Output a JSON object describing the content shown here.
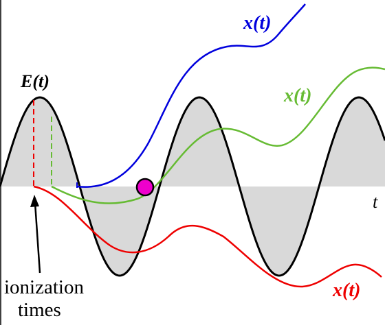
{
  "labels": {
    "field": "E(t)",
    "traj_blue": "x(t)",
    "traj_green": "x(t)",
    "traj_red": "x(t)",
    "time_axis": "t",
    "ionization_line1": "ionization",
    "ionization_line2": "times"
  },
  "colors": {
    "field": "#000000",
    "fill": "#d9d9d9",
    "blue": "#0000dd",
    "green": "#66bb33",
    "red": "#ee0000",
    "marker": "#ee00cc",
    "text": "#000000"
  }
}
